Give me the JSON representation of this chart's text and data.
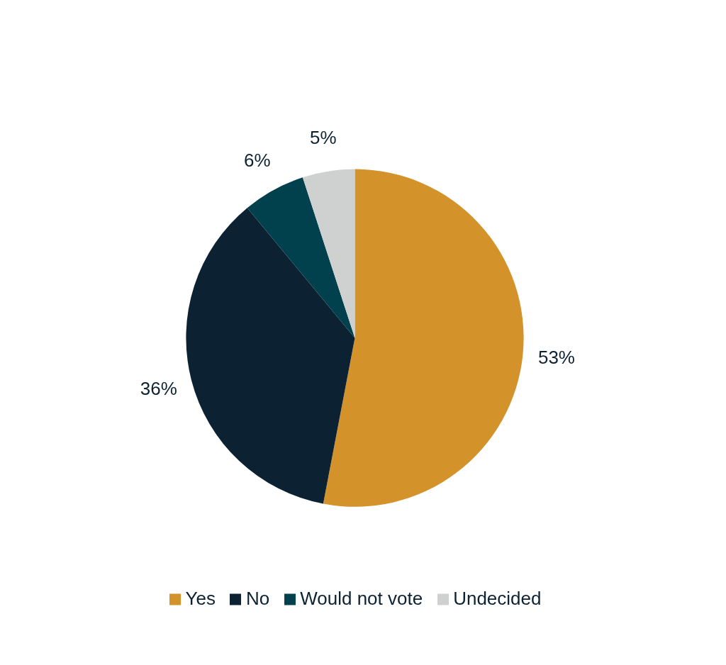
{
  "chart_data": {
    "type": "pie",
    "categories": [
      "Yes",
      "No",
      "Would not vote",
      "Undecided"
    ],
    "values": [
      53,
      36,
      6,
      5
    ],
    "colors": [
      "#d4922b",
      "#0c2233",
      "#01404d",
      "#cfd1d0"
    ],
    "value_labels": [
      "53%",
      "36%",
      "6%",
      "5%"
    ],
    "legend": "bottom"
  }
}
